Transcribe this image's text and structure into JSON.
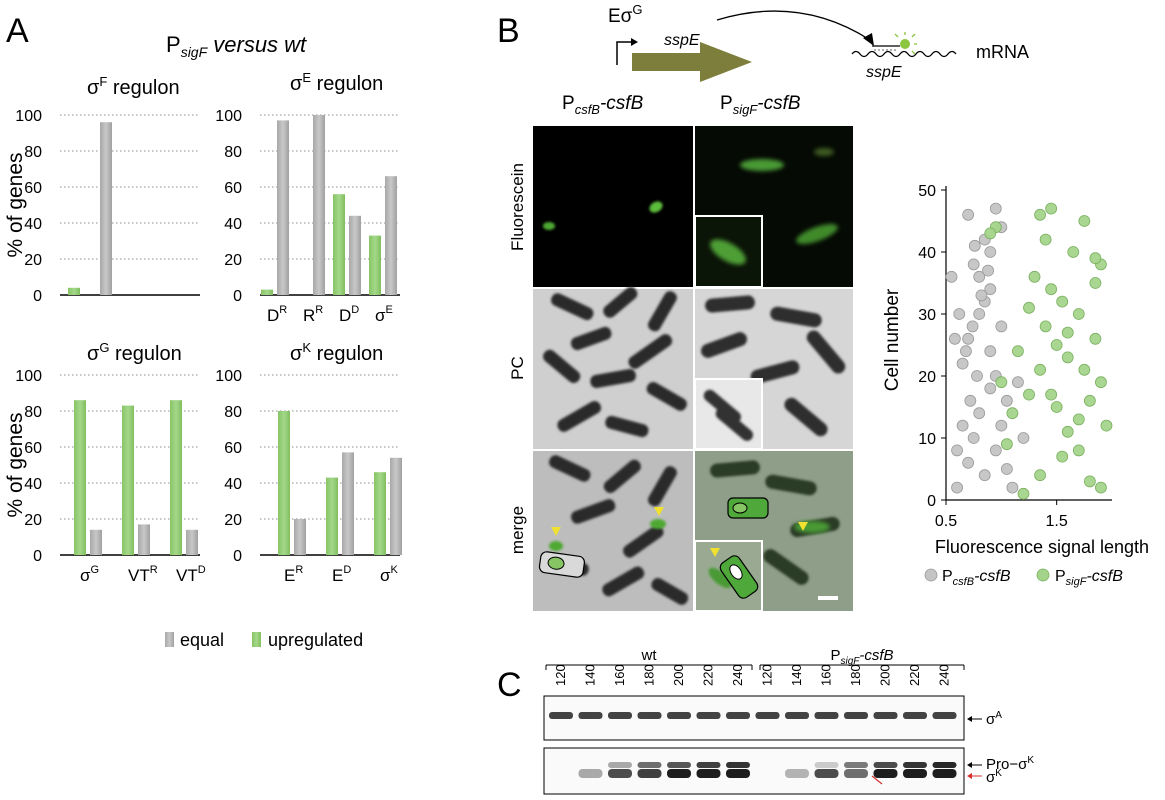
{
  "panel_labels": {
    "a": "A",
    "b": "B",
    "c": "C"
  },
  "panel_a": {
    "title_prefix": "P",
    "title_sub": "sigF",
    "title_suffix": " versus wt",
    "y_axis_label": "% of genes",
    "legend": {
      "equal": "equal",
      "upregulated": "upregulated"
    }
  },
  "colors": {
    "equal": "#b3b3b3",
    "upregulated": "#93cd73",
    "grid": "#8c8c8c",
    "axis": "#000000",
    "green_dot": "#a4d48a",
    "grey_dot": "#c4c4c4"
  },
  "chart_data": [
    {
      "type": "bar",
      "title_sigma": "σ",
      "title_sup": "F",
      "title_rest": " regulon",
      "ylim": [
        0,
        100
      ],
      "yticks": [
        "0",
        "20",
        "40",
        "60",
        "80",
        "100"
      ],
      "categories": [
        {
          "base": "",
          "sup": ""
        }
      ],
      "series": [
        {
          "name": "upregulated",
          "values": [
            4
          ]
        },
        {
          "name": "equal",
          "values": [
            96
          ]
        }
      ]
    },
    {
      "type": "bar",
      "title_sigma": "σ",
      "title_sup": "E",
      "title_rest": " regulon",
      "ylim": [
        0,
        100
      ],
      "yticks": [
        "0",
        "20",
        "40",
        "60",
        "80",
        "100"
      ],
      "categories": [
        {
          "base": "D",
          "sup": "R"
        },
        {
          "base": "R",
          "sup": "R"
        },
        {
          "base": "D",
          "sup": "D"
        },
        {
          "base": "σ",
          "sup": "E"
        }
      ],
      "series": [
        {
          "name": "upregulated",
          "values": [
            3,
            0,
            56,
            33
          ]
        },
        {
          "name": "equal",
          "values": [
            97,
            100,
            44,
            66
          ]
        }
      ]
    },
    {
      "type": "bar",
      "title_sigma": "σ",
      "title_sup": "G",
      "title_rest": " regulon",
      "ylim": [
        0,
        100
      ],
      "yticks": [
        "0",
        "20",
        "40",
        "60",
        "80",
        "100"
      ],
      "categories": [
        {
          "base": "σ",
          "sup": "G"
        },
        {
          "base": "VT",
          "sup": "R"
        },
        {
          "base": "VT",
          "sup": "D"
        }
      ],
      "series": [
        {
          "name": "upregulated",
          "values": [
            86,
            83,
            86
          ]
        },
        {
          "name": "equal",
          "values": [
            14,
            17,
            14
          ]
        }
      ]
    },
    {
      "type": "bar",
      "title_sigma": "σ",
      "title_sup": "K",
      "title_rest": " regulon",
      "ylim": [
        0,
        100
      ],
      "yticks": [
        "0",
        "20",
        "40",
        "60",
        "80",
        "100"
      ],
      "categories": [
        {
          "base": "E",
          "sup": "R"
        },
        {
          "base": "E",
          "sup": "D"
        },
        {
          "base": "σ",
          "sup": "K"
        }
      ],
      "series": [
        {
          "name": "upregulated",
          "values": [
            80,
            43,
            46
          ]
        },
        {
          "name": "equal",
          "values": [
            20,
            57,
            54
          ]
        }
      ]
    },
    {
      "type": "scatter",
      "ylabel": "Cell number",
      "xlabel": "Fluorescence signal length",
      "xlim": [
        0.5,
        2.0
      ],
      "ylim": [
        0,
        50
      ],
      "xticks": [
        "0.5",
        "1.5"
      ],
      "yticks": [
        "0",
        "10",
        "20",
        "30",
        "40",
        "50"
      ],
      "series": [
        {
          "name": "PcsfB-csfB",
          "label_base": "P",
          "label_sub": "csfB",
          "label_rest": "-csfB",
          "points": [
            [
              0.6,
              2
            ],
            [
              0.7,
              6
            ],
            [
              0.75,
              10
            ],
            [
              0.8,
              14
            ],
            [
              0.85,
              4
            ],
            [
              0.9,
              18
            ],
            [
              0.65,
              22
            ],
            [
              0.7,
              26
            ],
            [
              0.8,
              30
            ],
            [
              0.9,
              34
            ],
            [
              0.75,
              38
            ],
            [
              0.85,
              42
            ],
            [
              0.7,
              46
            ],
            [
              0.55,
              36
            ],
            [
              0.95,
              8
            ],
            [
              1.0,
              12
            ],
            [
              1.05,
              16
            ],
            [
              0.95,
              20
            ],
            [
              0.9,
              24
            ],
            [
              1.0,
              28
            ],
            [
              0.85,
              32
            ],
            [
              0.8,
              36
            ],
            [
              0.9,
              40
            ],
            [
              1.0,
              44
            ],
            [
              1.05,
              5
            ],
            [
              0.6,
              8
            ],
            [
              0.65,
              12
            ],
            [
              0.72,
              16
            ],
            [
              0.78,
              20
            ],
            [
              0.68,
              24
            ],
            [
              0.74,
              28
            ],
            [
              0.82,
              33
            ],
            [
              0.88,
              37
            ],
            [
              0.76,
              41
            ],
            [
              0.95,
              47
            ],
            [
              1.1,
              2
            ],
            [
              1.15,
              19
            ],
            [
              1.2,
              10
            ],
            [
              0.58,
              26
            ],
            [
              0.62,
              30
            ]
          ]
        },
        {
          "name": "PsigF-csfB",
          "label_base": "P",
          "label_sub": "sigF",
          "label_rest": "-csfB",
          "points": [
            [
              1.9,
              2
            ],
            [
              1.8,
              3
            ],
            [
              1.55,
              7
            ],
            [
              1.6,
              11
            ],
            [
              1.7,
              13
            ],
            [
              1.5,
              15
            ],
            [
              1.45,
              17
            ],
            [
              1.9,
              19
            ],
            [
              1.75,
              21
            ],
            [
              1.6,
              23
            ],
            [
              1.5,
              25
            ],
            [
              1.85,
              26
            ],
            [
              1.4,
              28
            ],
            [
              1.7,
              30
            ],
            [
              1.55,
              32
            ],
            [
              1.45,
              34
            ],
            [
              1.3,
              36
            ],
            [
              1.9,
              38
            ],
            [
              1.65,
              40
            ],
            [
              1.4,
              42
            ],
            [
              1.35,
              46
            ],
            [
              1.45,
              47
            ],
            [
              1.75,
              45
            ],
            [
              0.95,
              44
            ],
            [
              0.9,
              43
            ],
            [
              1.2,
              1
            ],
            [
              1.05,
              9
            ],
            [
              1.1,
              14
            ],
            [
              1.25,
              17
            ],
            [
              1.0,
              19
            ],
            [
              1.35,
              21
            ],
            [
              1.15,
              24
            ],
            [
              1.85,
              35
            ],
            [
              1.6,
              27
            ],
            [
              1.25,
              31
            ],
            [
              1.8,
              16
            ],
            [
              1.95,
              12
            ],
            [
              1.7,
              8
            ],
            [
              1.35,
              4
            ],
            [
              1.85,
              39
            ]
          ]
        }
      ]
    }
  ],
  "panel_b": {
    "e_sigma": "Eσ",
    "e_sup": "G",
    "gene": "sspE",
    "mrna": "mRNA",
    "mrna_gene": "sspE",
    "col1": {
      "base": "P",
      "sub": "csfB",
      "rest": "-csfB"
    },
    "col2": {
      "base": "P",
      "sub": "sigF",
      "rest": "-csfB"
    },
    "rows": [
      "Fluorescein",
      "PC",
      "merge"
    ]
  },
  "panel_c": {
    "group1": "wt",
    "group2": {
      "base": "P",
      "sub": "sigF",
      "rest": "-csfB"
    },
    "lanes": [
      "120",
      "140",
      "160",
      "180",
      "200",
      "220",
      "240",
      "120",
      "140",
      "160",
      "180",
      "200",
      "220",
      "240"
    ],
    "label_sigA": {
      "sigma": "σ",
      "sup": "A"
    },
    "label_pro": {
      "text": "Pro−σ",
      "sup": "K"
    },
    "label_sigK": {
      "sigma": "σ",
      "sup": "K"
    }
  }
}
